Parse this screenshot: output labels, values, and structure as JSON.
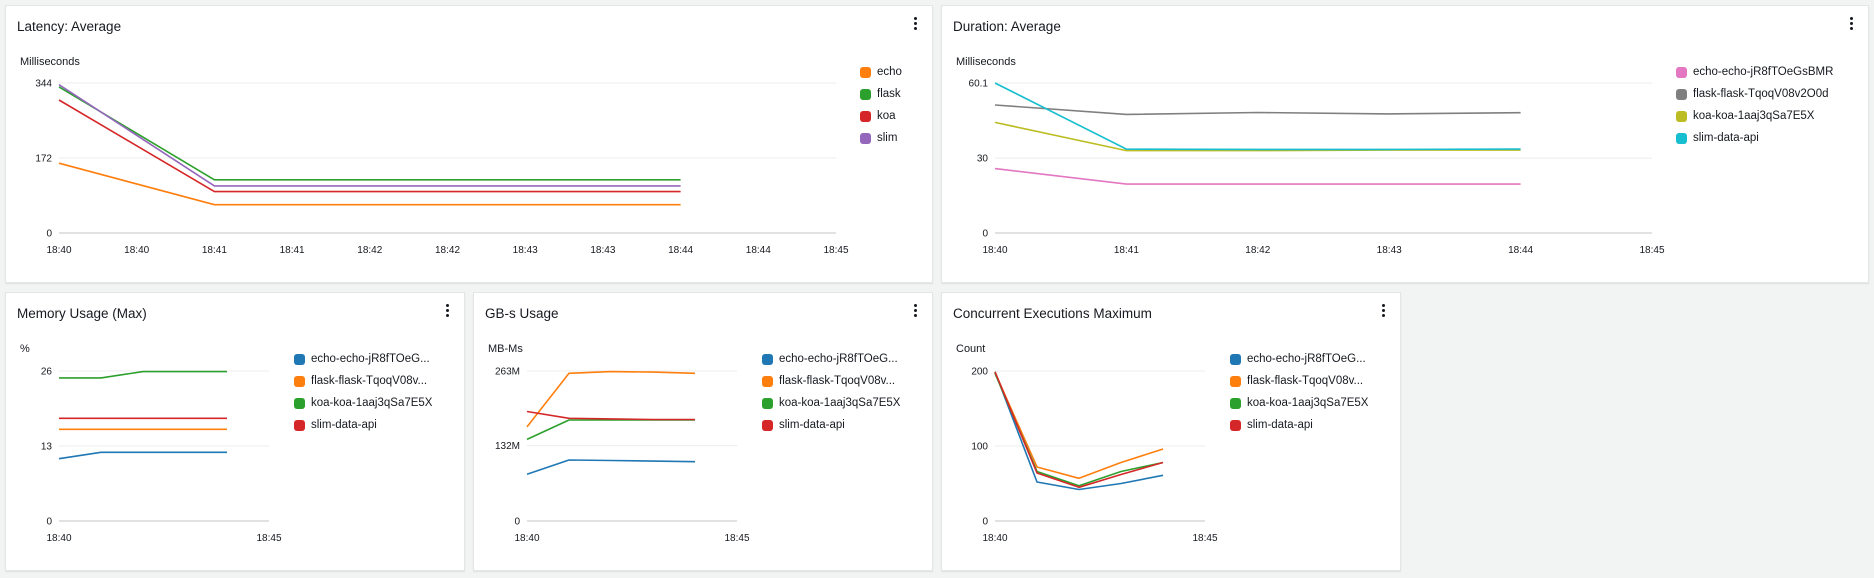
{
  "widgets": [
    {
      "id": "latency",
      "title": "Latency: Average",
      "menu_icon": "more-vertical-icon",
      "unit": "Milliseconds",
      "chart_data": {
        "type": "line",
        "title": "Latency: Average",
        "ylabel": "Milliseconds",
        "ylim": [
          0,
          344
        ],
        "yticks": [
          "344",
          "172",
          "0"
        ],
        "ytick_values": [
          344,
          172,
          0
        ],
        "xlim": [
          "18:40",
          "18:45"
        ],
        "xticks": [
          "18:40",
          "18:40",
          "18:41",
          "18:41",
          "18:42",
          "18:42",
          "18:43",
          "18:43",
          "18:44",
          "18:44",
          "18:45"
        ],
        "xtick_values": [
          0,
          0.5,
          1,
          1.5,
          2,
          2.5,
          3,
          3.5,
          4,
          4.5,
          5
        ],
        "x": [
          0,
          1,
          2,
          3,
          4
        ],
        "legend_position": "right",
        "grid": true,
        "series": [
          {
            "name": "echo",
            "color": "#ff7f0e",
            "values": [
              160,
              65,
              65,
              65,
              65
            ]
          },
          {
            "name": "flask",
            "color": "#2ca02c",
            "values": [
              335,
              122,
              122,
              122,
              122
            ]
          },
          {
            "name": "koa",
            "color": "#d62728",
            "values": [
              305,
              95,
              95,
              95,
              95
            ]
          },
          {
            "name": "slim",
            "color": "#9467bd",
            "values": [
              340,
              108,
              108,
              108,
              108
            ]
          }
        ]
      }
    },
    {
      "id": "duration",
      "title": "Duration: Average",
      "menu_icon": "more-vertical-icon",
      "unit": "Milliseconds",
      "chart_data": {
        "type": "line",
        "title": "Duration: Average",
        "ylabel": "Milliseconds",
        "ylim": [
          0,
          60.1
        ],
        "yticks": [
          "60.1",
          "30",
          "0"
        ],
        "ytick_values": [
          60.1,
          30,
          0
        ],
        "xlim": [
          "18:40",
          "18:45"
        ],
        "xticks": [
          "18:40",
          "18:41",
          "18:42",
          "18:43",
          "18:44",
          "18:45"
        ],
        "xtick_values": [
          0,
          1,
          2,
          3,
          4,
          5
        ],
        "x": [
          0,
          1,
          2,
          3,
          4
        ],
        "legend_position": "right",
        "grid": true,
        "series": [
          {
            "name": "echo-echo-jR8fTOeGsBMR",
            "color": "#e377c2",
            "values": [
              25.8,
              19.6,
              19.6,
              19.6,
              19.6
            ]
          },
          {
            "name": "flask-flask-TqoqV08v2O0d",
            "color": "#7f7f7f",
            "values": [
              51.3,
              47.5,
              48.3,
              47.7,
              48.2
            ]
          },
          {
            "name": "koa-koa-1aaj3qSa7E5X",
            "color": "#bcbd22",
            "values": [
              44.3,
              33.0,
              33.0,
              33.2,
              33.2
            ]
          },
          {
            "name": "slim-data-api",
            "color": "#17becf",
            "values": [
              60.1,
              33.6,
              33.5,
              33.5,
              33.6
            ]
          }
        ]
      }
    },
    {
      "id": "memory",
      "title": "Memory Usage (Max)",
      "menu_icon": "more-vertical-icon",
      "unit": "%",
      "chart_data": {
        "type": "line",
        "title": "Memory Usage (Max)",
        "ylabel": "%",
        "ylim": [
          0,
          26
        ],
        "yticks": [
          "26",
          "13",
          "0"
        ],
        "ytick_values": [
          26,
          13,
          0
        ],
        "xlim": [
          "18:40",
          "18:45"
        ],
        "xticks": [
          "18:40",
          "18:45"
        ],
        "xtick_values": [
          0,
          5
        ],
        "x": [
          0,
          1,
          2,
          3,
          4
        ],
        "legend_position": "right",
        "grid": true,
        "series": [
          {
            "name": "echo-echo-jR8fTOeG...",
            "color": "#1f77b4",
            "values": [
              10.8,
              11.9,
              11.9,
              11.9,
              11.9
            ]
          },
          {
            "name": "flask-flask-TqoqV08v...",
            "color": "#ff7f0e",
            "values": [
              15.9,
              15.9,
              15.9,
              15.9,
              15.9
            ]
          },
          {
            "name": "koa-koa-1aaj3qSa7E5X",
            "color": "#2ca02c",
            "values": [
              24.8,
              24.8,
              25.9,
              25.9,
              25.9
            ]
          },
          {
            "name": "slim-data-api",
            "color": "#d62728",
            "values": [
              17.8,
              17.8,
              17.8,
              17.8,
              17.8
            ]
          }
        ]
      }
    },
    {
      "id": "gbs",
      "title": "GB-s Usage",
      "menu_icon": "more-vertical-icon",
      "unit": "MB-Ms",
      "chart_data": {
        "type": "line",
        "title": "GB-s Usage",
        "ylabel": "MB-Ms",
        "ylim": [
          0,
          263
        ],
        "yticks": [
          "263M",
          "132M",
          "0"
        ],
        "ytick_values": [
          263,
          132,
          0
        ],
        "xlim": [
          "18:40",
          "18:45"
        ],
        "xticks": [
          "18:40",
          "18:45"
        ],
        "xtick_values": [
          0,
          5
        ],
        "x": [
          0,
          1,
          2,
          3,
          4
        ],
        "legend_position": "right",
        "grid": true,
        "series": [
          {
            "name": "echo-echo-jR8fTOeG...",
            "color": "#1f77b4",
            "values": [
              82,
              107,
              106,
              105,
              104
            ]
          },
          {
            "name": "flask-flask-TqoqV08v...",
            "color": "#ff7f0e",
            "values": [
              165,
              259,
              262,
              261,
              259
            ]
          },
          {
            "name": "koa-koa-1aaj3qSa7E5X",
            "color": "#2ca02c",
            "values": [
              143,
              177,
              177,
              177,
              177
            ]
          },
          {
            "name": "slim-data-api",
            "color": "#d62728",
            "values": [
              192,
              180,
              179,
              178,
              178
            ]
          }
        ]
      }
    },
    {
      "id": "concurrent",
      "title": "Concurrent Executions Maximum",
      "menu_icon": "more-vertical-icon",
      "unit": "Count",
      "chart_data": {
        "type": "line",
        "title": "Concurrent Executions Maximum",
        "ylabel": "Count",
        "ylim": [
          0,
          200
        ],
        "yticks": [
          "200",
          "100",
          "0"
        ],
        "ytick_values": [
          200,
          100,
          0
        ],
        "xlim": [
          "18:40",
          "18:45"
        ],
        "xticks": [
          "18:40",
          "18:45"
        ],
        "xtick_values": [
          0,
          5
        ],
        "x": [
          0,
          1,
          2,
          3,
          4
        ],
        "legend_position": "right",
        "grid": true,
        "series": [
          {
            "name": "echo-echo-jR8fTOeG...",
            "color": "#1f77b4",
            "values": [
              199,
              52,
              42,
              50,
              61
            ]
          },
          {
            "name": "flask-flask-TqoqV08v...",
            "color": "#ff7f0e",
            "values": [
              198,
              72,
              57,
              78,
              96
            ]
          },
          {
            "name": "koa-koa-1aaj3qSa7E5X",
            "color": "#2ca02c",
            "values": [
              197,
              66,
              47,
              66,
              78
            ]
          },
          {
            "name": "slim-data-api",
            "color": "#d62728",
            "values": [
              199,
              64,
              45,
              62,
              78
            ]
          }
        ]
      }
    }
  ]
}
